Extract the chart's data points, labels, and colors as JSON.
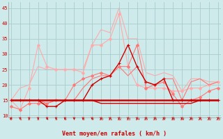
{
  "x": [
    0,
    1,
    2,
    3,
    4,
    5,
    6,
    7,
    8,
    9,
    10,
    11,
    12,
    13,
    14,
    15,
    16,
    17,
    18,
    19,
    20,
    21,
    22,
    23
  ],
  "series": [
    {
      "name": "light_gust_no_marker",
      "color": "#ffaaaa",
      "linewidth": 0.8,
      "marker": null,
      "zorder": 1,
      "y": [
        15,
        19,
        20,
        26,
        25,
        25,
        25,
        25,
        25,
        33,
        38,
        37,
        45,
        35,
        35,
        24,
        23,
        24,
        23,
        18,
        22,
        22,
        21,
        21
      ]
    },
    {
      "name": "light_avg_with_marker",
      "color": "#ffaaaa",
      "linewidth": 0.8,
      "marker": "D",
      "markersize": 2.0,
      "zorder": 2,
      "y": [
        15,
        12,
        19,
        33,
        26,
        25,
        25,
        25,
        24,
        33,
        33,
        35,
        43,
        26,
        20,
        19,
        19,
        19,
        18,
        18,
        19,
        19,
        20,
        21
      ]
    },
    {
      "name": "mid_gust_no_marker",
      "color": "#ff7777",
      "linewidth": 0.8,
      "marker": null,
      "zorder": 3,
      "y": [
        15,
        15,
        15,
        15,
        14,
        15,
        15,
        15,
        19,
        22,
        23,
        23,
        26,
        23,
        26,
        21,
        20,
        22,
        22,
        15,
        21,
        22,
        20,
        21
      ]
    },
    {
      "name": "mid_avg_with_marker",
      "color": "#ff7777",
      "linewidth": 0.8,
      "marker": "D",
      "markersize": 2.0,
      "zorder": 4,
      "y": [
        13,
        12,
        14,
        14,
        14,
        15,
        15,
        20,
        22,
        23,
        24,
        23,
        26,
        26,
        33,
        19,
        20,
        21,
        17,
        13,
        15,
        16,
        18,
        19
      ]
    },
    {
      "name": "dark_flat_thick",
      "color": "#cc0000",
      "linewidth": 1.8,
      "marker": null,
      "zorder": 5,
      "y": [
        15,
        15,
        15,
        15,
        15,
        15,
        15,
        15,
        15,
        15,
        15,
        15,
        15,
        15,
        15,
        15,
        15,
        15,
        15,
        15,
        15,
        15,
        15,
        15
      ]
    },
    {
      "name": "dark_flat_thin",
      "color": "#cc0000",
      "linewidth": 1.0,
      "marker": null,
      "zorder": 5,
      "y": [
        15,
        15,
        15,
        15,
        15,
        15,
        15,
        15,
        15,
        15,
        14,
        14,
        14,
        14,
        14,
        14,
        14,
        14,
        14,
        14,
        14,
        15,
        15,
        15
      ]
    },
    {
      "name": "dark_variable_with_marker",
      "color": "#cc0000",
      "linewidth": 1.0,
      "marker": "+",
      "markersize": 3.5,
      "zorder": 6,
      "y": [
        15,
        15,
        15,
        15,
        13,
        13,
        15,
        15,
        15,
        20,
        22,
        23,
        27,
        33,
        26,
        21,
        20,
        22,
        15,
        15,
        15,
        15,
        15,
        15
      ]
    }
  ],
  "xlabel": "Vent moyen/en rafales ( km/h )",
  "xlim": [
    -0.3,
    23.3
  ],
  "ylim": [
    9.5,
    47
  ],
  "yticks": [
    10,
    15,
    20,
    25,
    30,
    35,
    40,
    45
  ],
  "xticks": [
    0,
    1,
    2,
    3,
    4,
    5,
    6,
    7,
    8,
    9,
    10,
    11,
    12,
    13,
    14,
    15,
    16,
    17,
    18,
    19,
    20,
    21,
    22,
    23
  ],
  "background_color": "#ceeaea",
  "grid_color": "#aacccc",
  "label_color": "#cc0000",
  "arrow_color": "#cc0000"
}
